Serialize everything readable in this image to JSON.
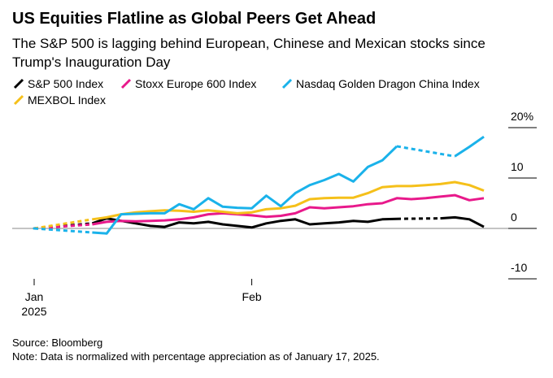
{
  "chart_data": {
    "type": "line",
    "title": "US Equities Flatline as Global Peers Get Ahead",
    "subtitle_lines": [
      "The S&P 500 is lagging behind European, Chinese and Mexican stocks since",
      "Trump's Inauguration Day"
    ],
    "categories": [
      "Jan",
      null,
      null,
      null,
      null,
      null,
      null,
      null,
      null,
      null,
      null,
      null,
      null,
      null,
      null,
      "Feb",
      null,
      null,
      null,
      null,
      null,
      null,
      null,
      null,
      null,
      null,
      null,
      null,
      null,
      null,
      null,
      null
    ],
    "x_year_label": "2025",
    "series": [
      {
        "name": "S&P 500 Index",
        "color": "#000000",
        "values": [
          0,
          null,
          null,
          null,
          1.0,
          2.0,
          1.5,
          1.0,
          0.5,
          0.3,
          1.2,
          1.0,
          1.3,
          0.8,
          0.5,
          0.2,
          1.0,
          1.5,
          1.8,
          0.8,
          1.0,
          1.2,
          1.5,
          1.3,
          1.8,
          1.9,
          null,
          null,
          2.0,
          2.2,
          1.8,
          0.3
        ]
      },
      {
        "name": "Stoxx Europe 600 Index",
        "color": "#e8198b",
        "values": [
          0,
          null,
          null,
          null,
          0.8,
          1.3,
          1.5,
          1.4,
          1.5,
          1.6,
          1.8,
          2.2,
          2.8,
          3.0,
          2.8,
          2.6,
          2.3,
          2.5,
          3.0,
          4.2,
          4.0,
          4.2,
          4.4,
          4.8,
          5.0,
          6.0,
          5.8,
          6.0,
          6.3,
          6.6,
          5.6,
          6.0
        ]
      },
      {
        "name": "Nasdaq Golden Dragon China Index",
        "color": "#1ab2ea",
        "values": [
          0,
          null,
          null,
          null,
          -0.8,
          -1.0,
          2.8,
          2.9,
          3.0,
          3.0,
          4.8,
          3.8,
          6.0,
          4.3,
          4.1,
          4.0,
          6.5,
          4.4,
          7.0,
          8.6,
          9.6,
          10.8,
          9.3,
          12.2,
          13.5,
          16.3,
          null,
          null,
          null,
          14.3,
          16.2,
          18.2
        ]
      },
      {
        "name": "MEXBOL Index",
        "color": "#f5c01a",
        "values": [
          0,
          null,
          null,
          null,
          1.8,
          2.2,
          2.8,
          3.2,
          3.4,
          3.6,
          3.5,
          3.3,
          3.6,
          3.3,
          3.0,
          3.2,
          3.8,
          4.0,
          4.5,
          5.8,
          6.0,
          6.1,
          6.1,
          7.0,
          8.2,
          8.4,
          8.4,
          8.6,
          8.8,
          9.2,
          8.6,
          7.5
        ]
      }
    ],
    "ylim": [
      -10,
      20
    ],
    "yticks": [
      {
        "value": 20,
        "label": "20%"
      },
      10,
      0,
      -10
    ],
    "source": "Source: Bloomberg",
    "note": "Note: Data is normalized with percentage appreciation as of January 17, 2025."
  }
}
